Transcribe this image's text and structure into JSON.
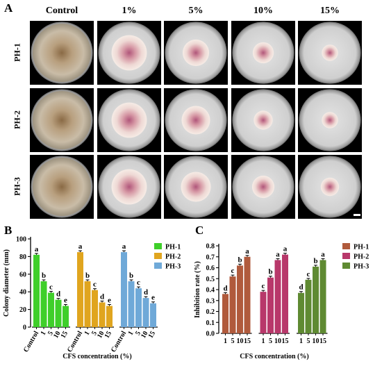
{
  "figure": {
    "panel_a_label": "A",
    "panel_b_label": "B",
    "panel_c_label": "C",
    "columns": [
      "Control",
      "1%",
      "5%",
      "10%",
      "15%"
    ],
    "rows": [
      "PH-1",
      "PH-2",
      "PH-3"
    ]
  },
  "chart_data": [
    {
      "type": "bar",
      "panel": "B",
      "ylabel": "Colony diameter (mm)",
      "xlabel": "CFS concentration (%)",
      "ylim": [
        0,
        100
      ],
      "yticks": [
        0,
        20,
        40,
        60,
        80,
        100
      ],
      "categories": [
        "Control",
        "1",
        "5",
        "10",
        "15"
      ],
      "legend_position": "right",
      "series": [
        {
          "name": "PH-1",
          "color": "#3fcf2a",
          "values": [
            82,
            52,
            39,
            31,
            24
          ],
          "letters": [
            "a",
            "b",
            "c",
            "d",
            "e"
          ]
        },
        {
          "name": "PH-2",
          "color": "#e0a51f",
          "values": [
            85,
            52,
            42,
            28,
            24
          ],
          "letters": [
            "a",
            "b",
            "c",
            "d",
            "e"
          ]
        },
        {
          "name": "PH-3",
          "color": "#6fa9d8",
          "values": [
            85,
            52,
            44,
            33,
            27
          ],
          "letters": [
            "a",
            "b",
            "c",
            "d",
            "e"
          ]
        }
      ]
    },
    {
      "type": "bar",
      "panel": "C",
      "ylabel": "Inhibition rate (%)",
      "xlabel": "CFS concentration (%)",
      "ylim": [
        0,
        0.8
      ],
      "yticks": [
        0.0,
        0.1,
        0.2,
        0.3,
        0.4,
        0.5,
        0.6,
        0.7,
        0.8
      ],
      "categories": [
        "1",
        "5",
        "10",
        "15"
      ],
      "legend_position": "top-right",
      "series": [
        {
          "name": "PH-1",
          "color": "#b05a3c",
          "values": [
            0.36,
            0.52,
            0.62,
            0.7
          ],
          "letters": [
            "d",
            "c",
            "b",
            "a"
          ]
        },
        {
          "name": "PH-2",
          "color": "#b8386a",
          "values": [
            0.38,
            0.51,
            0.67,
            0.72
          ],
          "letters": [
            "c",
            "b",
            "a",
            "a"
          ]
        },
        {
          "name": "PH-3",
          "color": "#5f8a32",
          "values": [
            0.37,
            0.49,
            0.61,
            0.67
          ],
          "letters": [
            "d",
            "c",
            "b",
            "a"
          ]
        }
      ]
    }
  ]
}
